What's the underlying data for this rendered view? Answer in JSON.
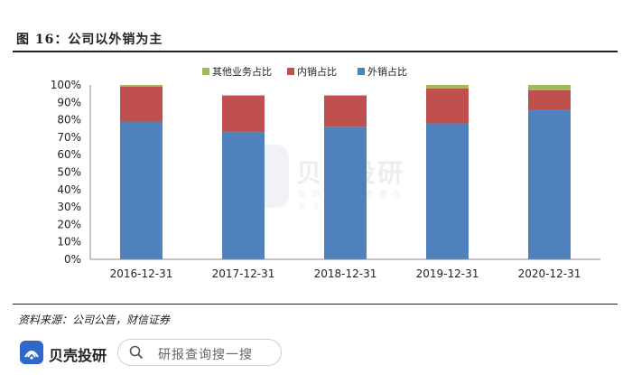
{
  "figure": {
    "title": "图 16：公司以外销为主",
    "source": "资料来源：公司公告，财信证券"
  },
  "watermark": {
    "brand": "贝壳投研",
    "sub": "聪明的投资者都在关注"
  },
  "footer": {
    "brand": "贝壳投研",
    "search_placeholder": "研报查询搜一搜"
  },
  "colors": {
    "export": "#4f81bd",
    "domestic": "#c0504d",
    "other": "#9bbb59"
  },
  "chart_data": {
    "type": "bar",
    "stacked": true,
    "categories": [
      "2016-12-31",
      "2017-12-31",
      "2018-12-31",
      "2019-12-31",
      "2020-12-31"
    ],
    "series": [
      {
        "name": "外销占比",
        "color": "#4f81bd",
        "values": [
          79,
          73,
          76,
          78,
          86
        ]
      },
      {
        "name": "内销占比",
        "color": "#c0504d",
        "values": [
          20,
          21,
          18,
          20,
          11
        ]
      },
      {
        "name": "其他业务占比",
        "color": "#9bbb59",
        "values": [
          1,
          0,
          0,
          2,
          3
        ]
      }
    ],
    "legend_order": [
      "其他业务占比",
      "内销占比",
      "外销占比"
    ],
    "legend_position": "top-right",
    "ylim": [
      0,
      100
    ],
    "yticks": [
      "0%",
      "10%",
      "20%",
      "30%",
      "40%",
      "50%",
      "60%",
      "70%",
      "80%",
      "90%",
      "100%"
    ],
    "grid": false
  }
}
